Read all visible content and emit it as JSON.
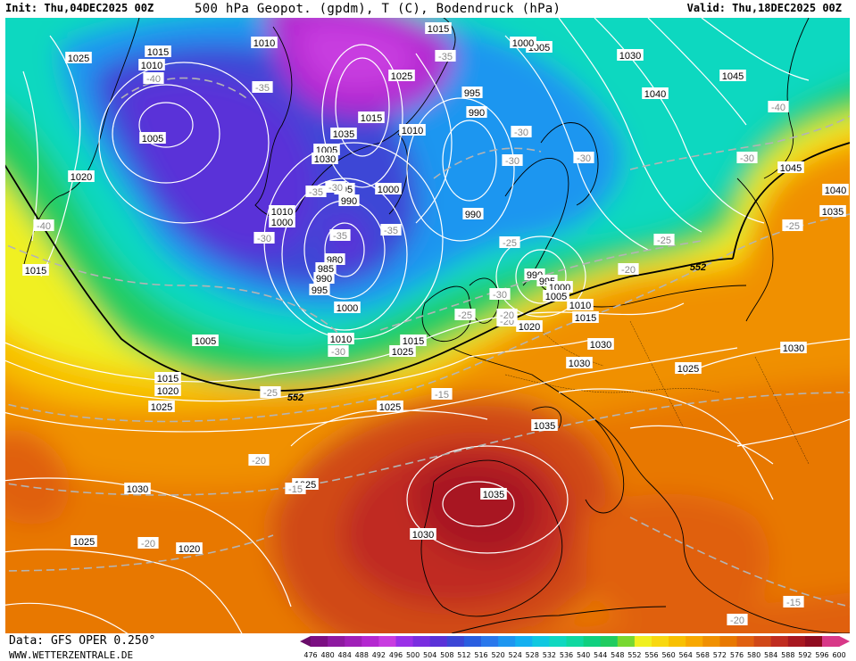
{
  "header": {
    "init": "Init: Thu,04DEC2025 00Z",
    "title": "500 hPa Geopot. (gpdm), T (C), Bodendruck (hPa)",
    "valid": "Valid: Thu,18DEC2025 00Z"
  },
  "footer": {
    "source": "Data: GFS OPER 0.250°",
    "site": "WWW.WETTERZENTRALE.DE"
  },
  "scale": {
    "values": [
      "476",
      "480",
      "484",
      "488",
      "492",
      "496",
      "500",
      "504",
      "508",
      "512",
      "516",
      "520",
      "524",
      "528",
      "532",
      "536",
      "540",
      "544",
      "548",
      "552",
      "556",
      "560",
      "564",
      "568",
      "572",
      "576",
      "580",
      "584",
      "588",
      "592",
      "596",
      "600"
    ],
    "colors": [
      "#6a0d6a",
      "#7b0f82",
      "#8e1aa0",
      "#a020b8",
      "#b428d0",
      "#c83ce0",
      "#9a30e8",
      "#7a2ee0",
      "#5a32d8",
      "#3c46d6",
      "#2a5ee0",
      "#2a78ec",
      "#1e96f0",
      "#14b0f0",
      "#10c8e0",
      "#10d8c0",
      "#10d8a0",
      "#10d080",
      "#20cc60",
      "#78d830",
      "#f0f020",
      "#f8d810",
      "#f8c000",
      "#f8a800",
      "#f09000",
      "#e87800",
      "#e06010",
      "#d04818",
      "#c02c20",
      "#a81820",
      "#900c20",
      "#d83888"
    ]
  },
  "pressure_labels": [
    {
      "t": "1015"
    },
    {
      "t": "1010"
    },
    {
      "t": "1025"
    },
    {
      "t": "1010"
    },
    {
      "t": "1015"
    },
    {
      "t": "1025"
    },
    {
      "t": "1005"
    },
    {
      "t": "1000"
    },
    {
      "t": "1030"
    },
    {
      "t": "1045"
    },
    {
      "t": "1040"
    },
    {
      "t": "995"
    },
    {
      "t": "990"
    },
    {
      "t": "1015"
    },
    {
      "t": "1005"
    },
    {
      "t": "1010"
    },
    {
      "t": "1035"
    },
    {
      "t": "1005"
    },
    {
      "t": "1030"
    },
    {
      "t": "1020"
    },
    {
      "t": "995"
    },
    {
      "t": "1000"
    },
    {
      "t": "990"
    },
    {
      "t": "1010"
    },
    {
      "t": "1000"
    },
    {
      "t": "990"
    },
    {
      "t": "1045"
    },
    {
      "t": "1040"
    },
    {
      "t": "1035"
    },
    {
      "t": "1015"
    },
    {
      "t": "980"
    },
    {
      "t": "985"
    },
    {
      "t": "990"
    },
    {
      "t": "995"
    },
    {
      "t": "1000"
    },
    {
      "t": "990"
    },
    {
      "t": "995"
    },
    {
      "t": "1000"
    },
    {
      "t": "1005"
    },
    {
      "t": "1010"
    },
    {
      "t": "1015"
    },
    {
      "t": "1020"
    },
    {
      "t": "1005"
    },
    {
      "t": "1010"
    },
    {
      "t": "1015"
    },
    {
      "t": "1025"
    },
    {
      "t": "1030"
    },
    {
      "t": "1030"
    },
    {
      "t": "1025"
    },
    {
      "t": "1015"
    },
    {
      "t": "1020"
    },
    {
      "t": "1025"
    },
    {
      "t": "1025"
    },
    {
      "t": "1035"
    },
    {
      "t": "1035"
    },
    {
      "t": "1030"
    },
    {
      "t": "1025"
    },
    {
      "t": "1030"
    },
    {
      "t": "1025"
    },
    {
      "t": "1020"
    },
    {
      "t": "1030"
    }
  ],
  "temp_labels": [
    {
      "t": "-35"
    },
    {
      "t": "-40"
    },
    {
      "t": "-35"
    },
    {
      "t": "-30"
    },
    {
      "t": "-30"
    },
    {
      "t": "-30"
    },
    {
      "t": "-35"
    },
    {
      "t": "-25"
    },
    {
      "t": "-30"
    },
    {
      "t": "-35"
    },
    {
      "t": "-30"
    },
    {
      "t": "-40"
    },
    {
      "t": "-35"
    },
    {
      "t": "-30"
    },
    {
      "t": "-25"
    },
    {
      "t": "-25"
    },
    {
      "t": "-25"
    },
    {
      "t": "-20"
    },
    {
      "t": "-20"
    },
    {
      "t": "-30"
    },
    {
      "t": "-25"
    },
    {
      "t": "-20"
    },
    {
      "t": "-15"
    },
    {
      "t": "-20"
    },
    {
      "t": "-15"
    },
    {
      "t": "-20"
    },
    {
      "t": "-15"
    },
    {
      "t": "-20"
    },
    {
      "t": "-40"
    },
    {
      "t": "-30"
    }
  ],
  "geopot_labels": [
    {
      "t": "552"
    },
    {
      "t": "552"
    }
  ],
  "colors": {
    "isobar": "#ffffff",
    "isotherm": "#b4b4b4",
    "coast": "#000000"
  }
}
